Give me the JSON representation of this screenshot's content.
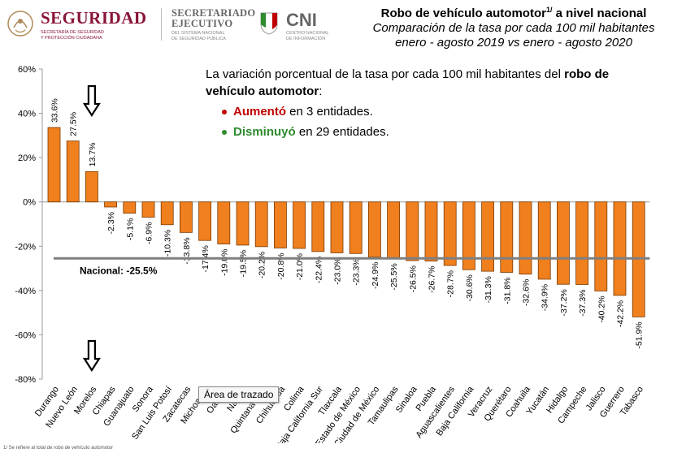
{
  "header": {
    "seguridad_title": "SEGURIDAD",
    "seguridad_sub1": "SECRETARÍA DE SEGURIDAD",
    "seguridad_sub2": "Y PROTECCIÓN CIUDADANA",
    "sesnsp_line1": "SECRETARIADO",
    "sesnsp_line2": "EJECUTIVO",
    "sesnsp_sub1": "DEL SISTEMA NACIONAL",
    "sesnsp_sub2": "DE SEGURIDAD PÚBLICA",
    "cni_title": "CNI",
    "cni_sub1": "CENTRO NACIONAL",
    "cni_sub2": "DE INFORMACIÓN",
    "brand_color": "#8a1538"
  },
  "chart_data": {
    "type": "bar",
    "title": "Robo de vehículo automotor",
    "title_superscript": "1/",
    "title_suffix": " a nivel nacional",
    "subtitle_line1": "Comparación de la tasa por cada 100 mil habitantes",
    "subtitle_line2": "enero - agosto 2019 vs enero - agosto 2020",
    "categories": [
      "Durango",
      "Nuevo León",
      "Morelos",
      "Chiapas",
      "Guanajuato",
      "Sonora",
      "San Luis Potosí",
      "Zacatecas",
      "Michoacán",
      "Oaxaca",
      "Nayarit",
      "Quintana Roo",
      "Chihuahua",
      "Colima",
      "Baja California Sur",
      "Tlaxcala",
      "Estado de México",
      "Ciudad de México",
      "Tamaulipas",
      "Sinaloa",
      "Puebla",
      "Aguascalientes",
      "Baja California",
      "Veracruz",
      "Querétaro",
      "Coahuila",
      "Yucatán",
      "Hidalgo",
      "Campeche",
      "Jalisco",
      "Guerrero",
      "Tabasco"
    ],
    "category_labels": [
      "Durango",
      "Nuevo León",
      "Morelos",
      "Chiapas",
      "Guanajuato",
      "Sonora",
      "San Luis Potosí",
      "Zacatecas",
      "Michoacán",
      "Oaxaca",
      "Nayarit",
      "Quintana Roo",
      "Chihuahua",
      "Colima",
      "Baja California Sur",
      "Tlaxcala",
      "Estado de México",
      "Ciudad de México",
      "Tamaulipas",
      "Sinaloa",
      "Puebla",
      "Aguascalientes",
      "Baja California",
      "Veracruz",
      "Querétaro",
      "Coahuila",
      "Yucatán",
      "Hidalgo",
      "Campeche",
      "Jalisco",
      "Guerrero",
      "Tabasco"
    ],
    "values": [
      33.6,
      27.5,
      13.7,
      -2.3,
      -5.1,
      -6.9,
      -10.3,
      -13.8,
      -17.4,
      -19.0,
      -19.5,
      -20.2,
      -20.8,
      -21.0,
      -22.4,
      -23.0,
      -23.3,
      -24.9,
      -25.5,
      -26.5,
      -26.7,
      -28.7,
      -30.6,
      -31.3,
      -31.8,
      -32.6,
      -34.9,
      -37.2,
      -37.3,
      -40.2,
      -42.2,
      -51.9
    ],
    "value_labels": [
      "33.6%",
      "27.5%",
      "13.7%",
      "-2.3%",
      "-5.1%",
      "-6.9%",
      "-10.3%",
      "-13.8%",
      "-17.4%",
      "-19.0%",
      "-19.5%",
      "-20.2%",
      "-20.8%",
      "-21.0%",
      "-22.4%",
      "-23.0%",
      "-23.3%",
      "-24.9%",
      "-25.5%",
      "-26.5%",
      "-26.7%",
      "-28.7%",
      "-30.6%",
      "-31.3%",
      "-31.8%",
      "-32.6%",
      "-34.9%",
      "-37.2%",
      "-37.3%",
      "-40.2%",
      "-42.2%",
      "-51.9%"
    ],
    "ylim": [
      -80,
      60
    ],
    "yticks": [
      60,
      40,
      20,
      0,
      -20,
      -40,
      -60,
      -80
    ],
    "ytick_labels": [
      "60%",
      "40%",
      "20%",
      "0%",
      "-20%",
      "-40%",
      "-60%",
      "-80%"
    ],
    "reference_line": {
      "value": -25.5,
      "label": "Nacional: -25.5%"
    },
    "bar_color": "#f07f1e",
    "bar_edge_color": "#7a3a00",
    "grid": false,
    "annotations": [
      {
        "type": "arrow-down",
        "near_category": "Morelos",
        "where": "above plot"
      },
      {
        "type": "arrow-down",
        "near_category": "Morelos",
        "where": "below axis"
      }
    ]
  },
  "info": {
    "line1_prefix": "La variación porcentual de la tasa por cada 100 mil habitantes del ",
    "line1_bold": "robo de vehículo automotor",
    "line1_suffix": ":",
    "up_word": "Aumentó",
    "up_rest": " en 3 entidades.",
    "down_word": "Disminuyó",
    "down_rest": " en 29 entidades.",
    "up_color": "#c00000",
    "down_color": "#2e8b2e"
  },
  "tooltip": "Área de trazado",
  "footer": "1/ Se refiere al total de robo de vehículo automotor"
}
